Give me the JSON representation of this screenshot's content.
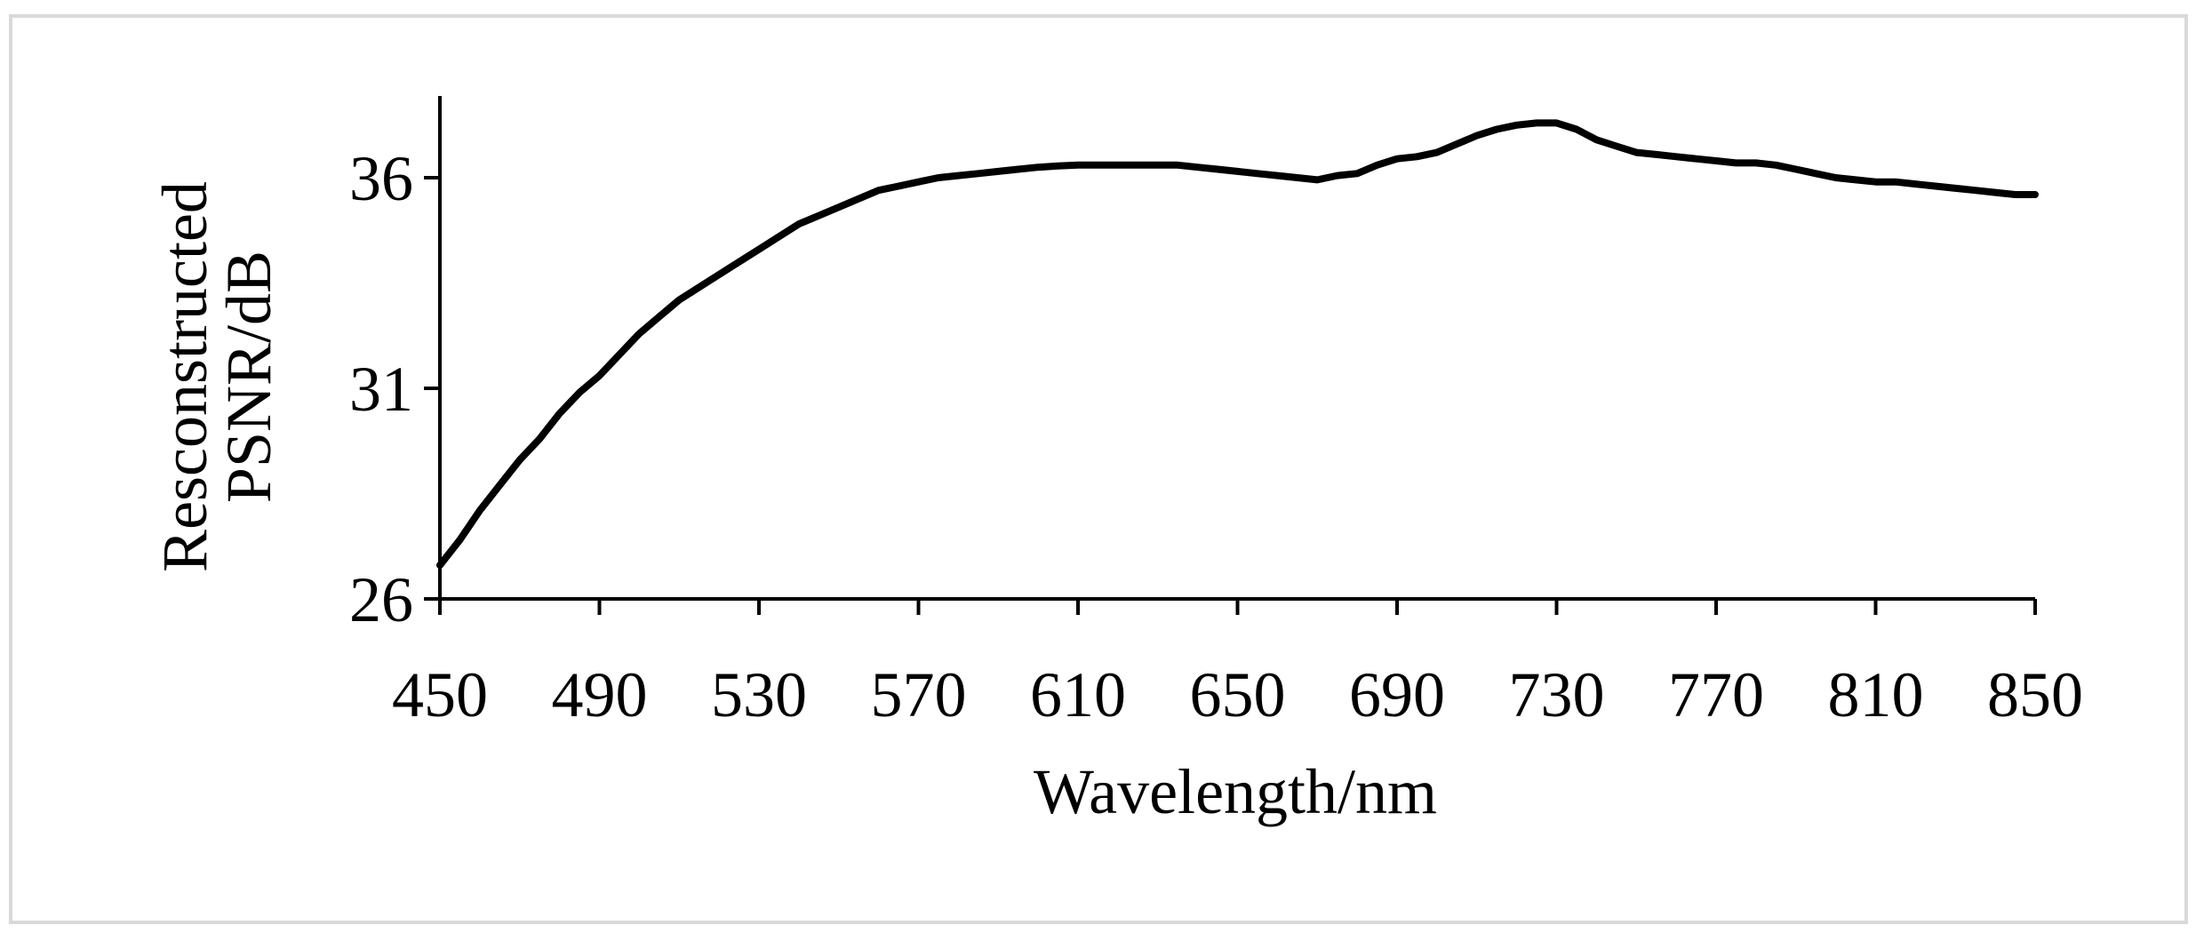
{
  "chart_data": {
    "type": "line",
    "xlabel": "Wavelength/nm",
    "ylabel_lines": [
      "Resconstructed",
      "PSNR/dB"
    ],
    "xlim": [
      450,
      850
    ],
    "ylim": [
      26,
      38
    ],
    "x_ticks": [
      450,
      490,
      530,
      570,
      610,
      650,
      690,
      730,
      770,
      810,
      850
    ],
    "y_ticks": [
      26,
      31,
      36
    ],
    "grid": false,
    "legend": "none",
    "line_color": "#000000",
    "series": [
      {
        "x": [
          450,
          455,
          460,
          465,
          470,
          475,
          480,
          485,
          490,
          495,
          500,
          505,
          510,
          515,
          520,
          525,
          530,
          535,
          540,
          545,
          550,
          555,
          560,
          565,
          570,
          575,
          580,
          585,
          590,
          595,
          600,
          605,
          610,
          615,
          620,
          625,
          630,
          635,
          640,
          645,
          650,
          655,
          660,
          665,
          670,
          675,
          680,
          685,
          690,
          695,
          700,
          705,
          710,
          715,
          720,
          725,
          730,
          735,
          740,
          745,
          750,
          755,
          760,
          765,
          770,
          775,
          780,
          785,
          790,
          795,
          800,
          805,
          810,
          815,
          820,
          825,
          830,
          835,
          840,
          845,
          850
        ],
        "values": [
          26.8,
          27.4,
          28.1,
          28.7,
          29.3,
          29.8,
          30.4,
          30.9,
          31.3,
          31.8,
          32.3,
          32.7,
          33.1,
          33.4,
          33.7,
          34.0,
          34.3,
          34.6,
          34.9,
          35.1,
          35.3,
          35.5,
          35.7,
          35.8,
          35.9,
          36.0,
          36.05,
          36.1,
          36.15,
          36.2,
          36.25,
          36.28,
          36.3,
          36.3,
          36.3,
          36.3,
          36.3,
          36.3,
          36.25,
          36.2,
          36.15,
          36.1,
          36.05,
          36.0,
          35.95,
          36.05,
          36.1,
          36.3,
          36.45,
          36.5,
          36.6,
          36.8,
          37.0,
          37.15,
          37.25,
          37.3,
          37.3,
          37.15,
          36.9,
          36.75,
          36.6,
          36.55,
          36.5,
          36.45,
          36.4,
          36.35,
          36.35,
          36.3,
          36.2,
          36.1,
          36.0,
          35.95,
          35.9,
          35.9,
          35.85,
          35.8,
          35.75,
          35.7,
          35.65,
          35.6,
          35.6
        ]
      }
    ]
  }
}
